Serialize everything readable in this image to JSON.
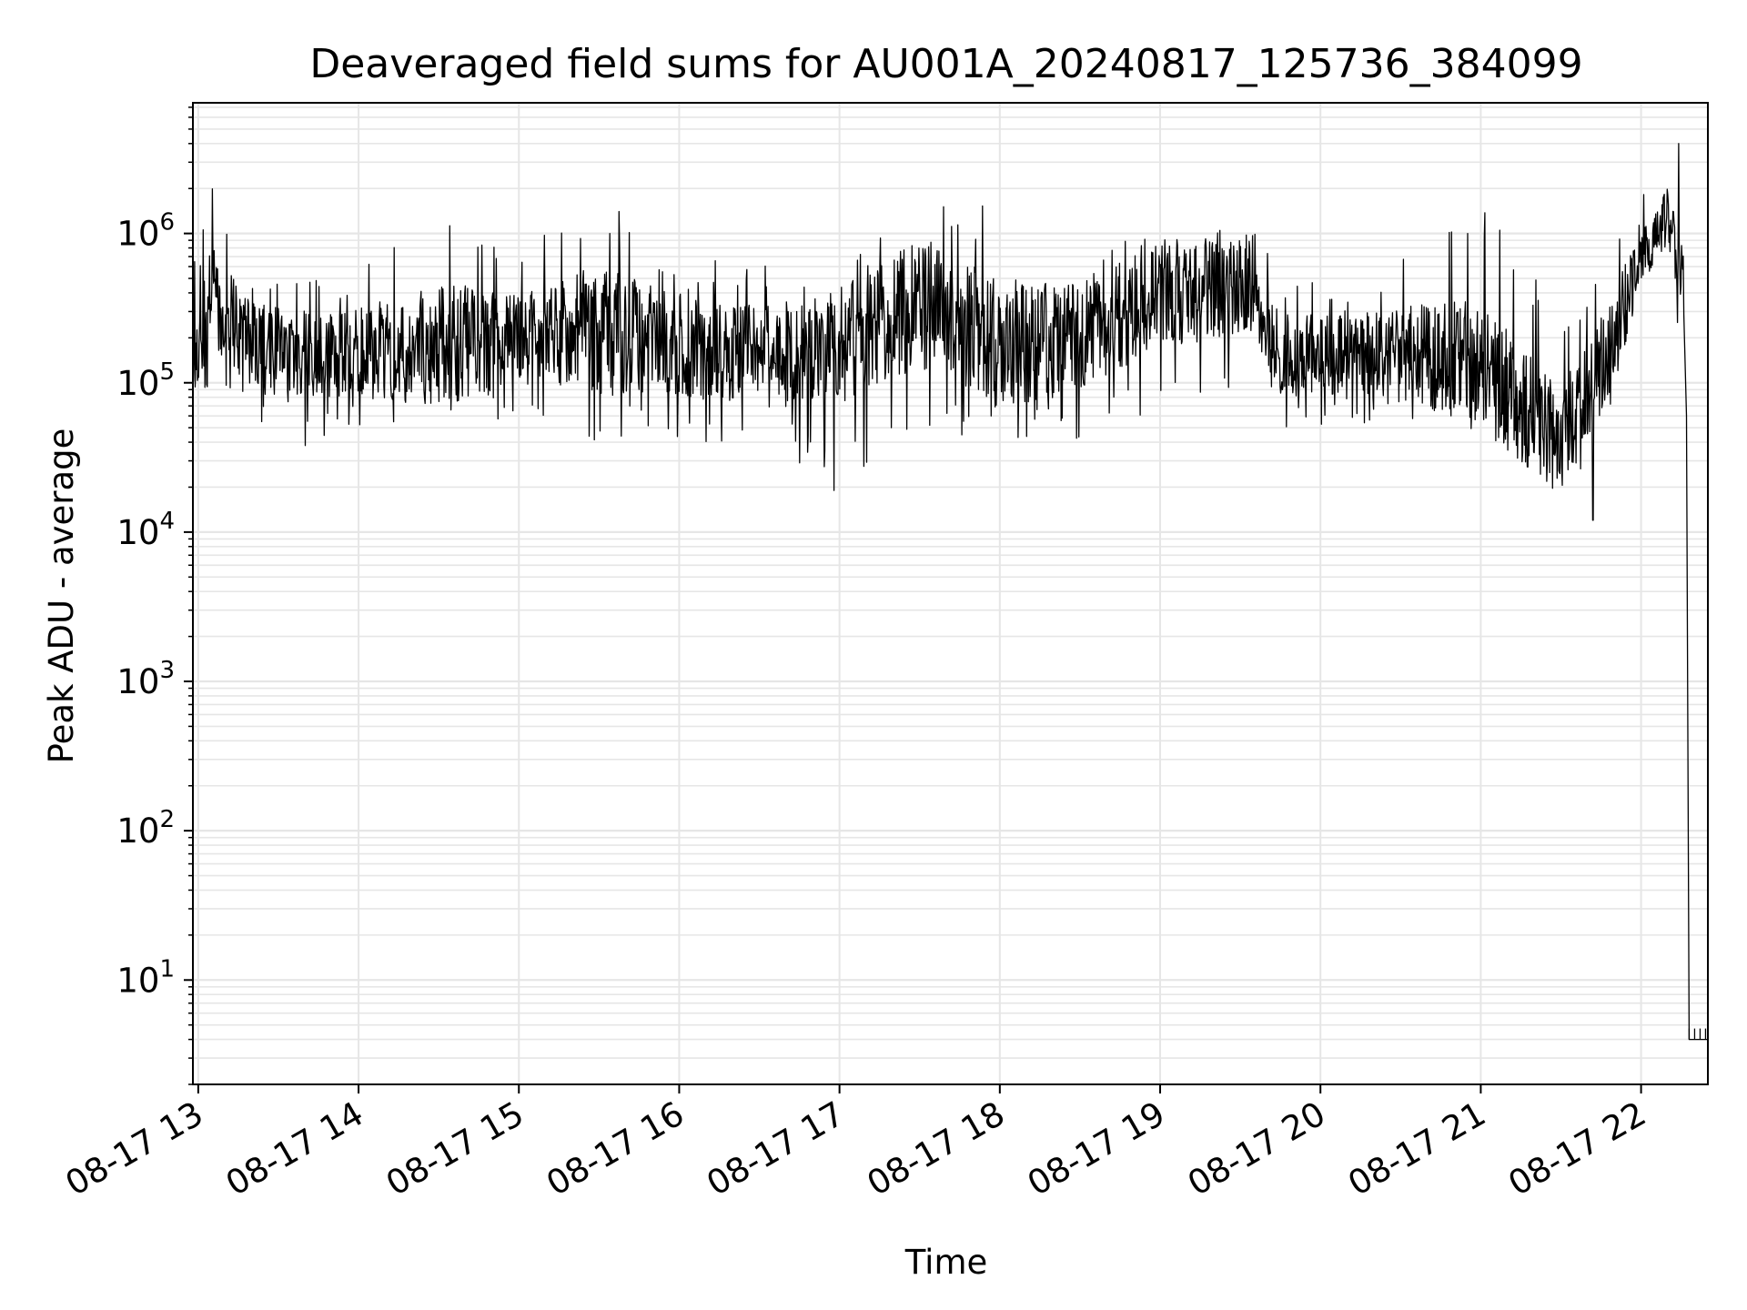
{
  "chart_data": {
    "type": "line",
    "title": "Deaveraged field sums for AU001A_20240817_125736_384099",
    "xlabel": "Time",
    "ylabel": "Peak ADU - average",
    "yscale": "log",
    "grid": true,
    "line_color": "#000000",
    "grid_color": "#e6e6e6",
    "xlim": [
      "2024-08-17 12:58",
      "2024-08-17 22:25"
    ],
    "ylim": [
      2,
      7500000
    ],
    "x_ticks": [
      {
        "time": "2024-08-17 13:00",
        "label": "08-17 13"
      },
      {
        "time": "2024-08-17 14:00",
        "label": "08-17 14"
      },
      {
        "time": "2024-08-17 15:00",
        "label": "08-17 15"
      },
      {
        "time": "2024-08-17 16:00",
        "label": "08-17 16"
      },
      {
        "time": "2024-08-17 17:00",
        "label": "08-17 17"
      },
      {
        "time": "2024-08-17 18:00",
        "label": "08-17 18"
      },
      {
        "time": "2024-08-17 19:00",
        "label": "08-17 19"
      },
      {
        "time": "2024-08-17 20:00",
        "label": "08-17 20"
      },
      {
        "time": "2024-08-17 21:00",
        "label": "08-17 21"
      },
      {
        "time": "2024-08-17 22:00",
        "label": "08-17 22"
      }
    ],
    "y_ticks": [
      {
        "value": 10,
        "base": "10",
        "exp": "1"
      },
      {
        "value": 100,
        "base": "10",
        "exp": "2"
      },
      {
        "value": 1000,
        "base": "10",
        "exp": "3"
      },
      {
        "value": 10000,
        "base": "10",
        "exp": "4"
      },
      {
        "value": 100000,
        "base": "10",
        "exp": "5"
      },
      {
        "value": 1000000,
        "base": "10",
        "exp": "6"
      }
    ],
    "series": [
      {
        "trend": [
          {
            "time": "2024-08-17 12:58",
            "median": 150000,
            "lo": 70000,
            "hi": 600000
          },
          {
            "time": "2024-08-17 13:05",
            "median": 400000,
            "lo": 100000,
            "hi": 2300000
          },
          {
            "time": "2024-08-17 13:20",
            "median": 180000,
            "lo": 50000,
            "hi": 500000
          },
          {
            "time": "2024-08-17 13:30",
            "median": 150000,
            "lo": 30000,
            "hi": 500000
          },
          {
            "time": "2024-08-17 14:00",
            "median": 160000,
            "lo": 50000,
            "hi": 600000
          },
          {
            "time": "2024-08-17 14:30",
            "median": 180000,
            "lo": 50000,
            "hi": 1600000
          },
          {
            "time": "2024-08-17 15:00",
            "median": 200000,
            "lo": 60000,
            "hi": 800000
          },
          {
            "time": "2024-08-17 15:30",
            "median": 220000,
            "lo": 40000,
            "hi": 1800000
          },
          {
            "time": "2024-08-17 16:00",
            "median": 180000,
            "lo": 40000,
            "hi": 700000
          },
          {
            "time": "2024-08-17 16:30",
            "median": 150000,
            "lo": 40000,
            "hi": 700000
          },
          {
            "time": "2024-08-17 17:00",
            "median": 170000,
            "lo": 20000,
            "hi": 600000
          },
          {
            "time": "2024-08-17 17:30",
            "median": 350000,
            "lo": 40000,
            "hi": 1600000
          },
          {
            "time": "2024-08-17 18:00",
            "median": 180000,
            "lo": 40000,
            "hi": 1600000
          },
          {
            "time": "2024-08-17 18:30",
            "median": 200000,
            "lo": 40000,
            "hi": 800000
          },
          {
            "time": "2024-08-17 19:00",
            "median": 400000,
            "lo": 60000,
            "hi": 1200000
          },
          {
            "time": "2024-08-17 19:35",
            "median": 450000,
            "lo": 70000,
            "hi": 1200000
          },
          {
            "time": "2024-08-17 19:45",
            "median": 150000,
            "lo": 50000,
            "hi": 500000
          },
          {
            "time": "2024-08-17 20:00",
            "median": 160000,
            "lo": 50000,
            "hi": 500000
          },
          {
            "time": "2024-08-17 20:30",
            "median": 160000,
            "lo": 50000,
            "hi": 700000
          },
          {
            "time": "2024-08-17 21:00",
            "median": 130000,
            "lo": 40000,
            "hi": 1600000
          },
          {
            "time": "2024-08-17 21:30",
            "median": 40000,
            "lo": 15000,
            "hi": 300000
          },
          {
            "time": "2024-08-17 21:50",
            "median": 200000,
            "lo": 60000,
            "hi": 1000000
          },
          {
            "time": "2024-08-17 22:00",
            "median": 700000,
            "lo": 400000,
            "hi": 1700000
          },
          {
            "time": "2024-08-17 22:10",
            "median": 1300000,
            "lo": 800000,
            "hi": 4000000
          },
          {
            "time": "2024-08-17 22:16",
            "median": 400000,
            "lo": 100000,
            "hi": 900000
          }
        ],
        "notable_points": [
          {
            "time": "2024-08-17 16:58",
            "value": 19000
          },
          {
            "time": "2024-08-17 21:42",
            "value": 12000
          },
          {
            "time": "2024-08-17 22:14",
            "value": 4000000
          }
        ],
        "tail": [
          {
            "time": "2024-08-17 22:17",
            "value": 60000
          },
          {
            "time": "2024-08-17 22:18",
            "value": 4
          },
          {
            "time": "2024-08-17 22:25",
            "value": 4
          }
        ]
      }
    ]
  }
}
